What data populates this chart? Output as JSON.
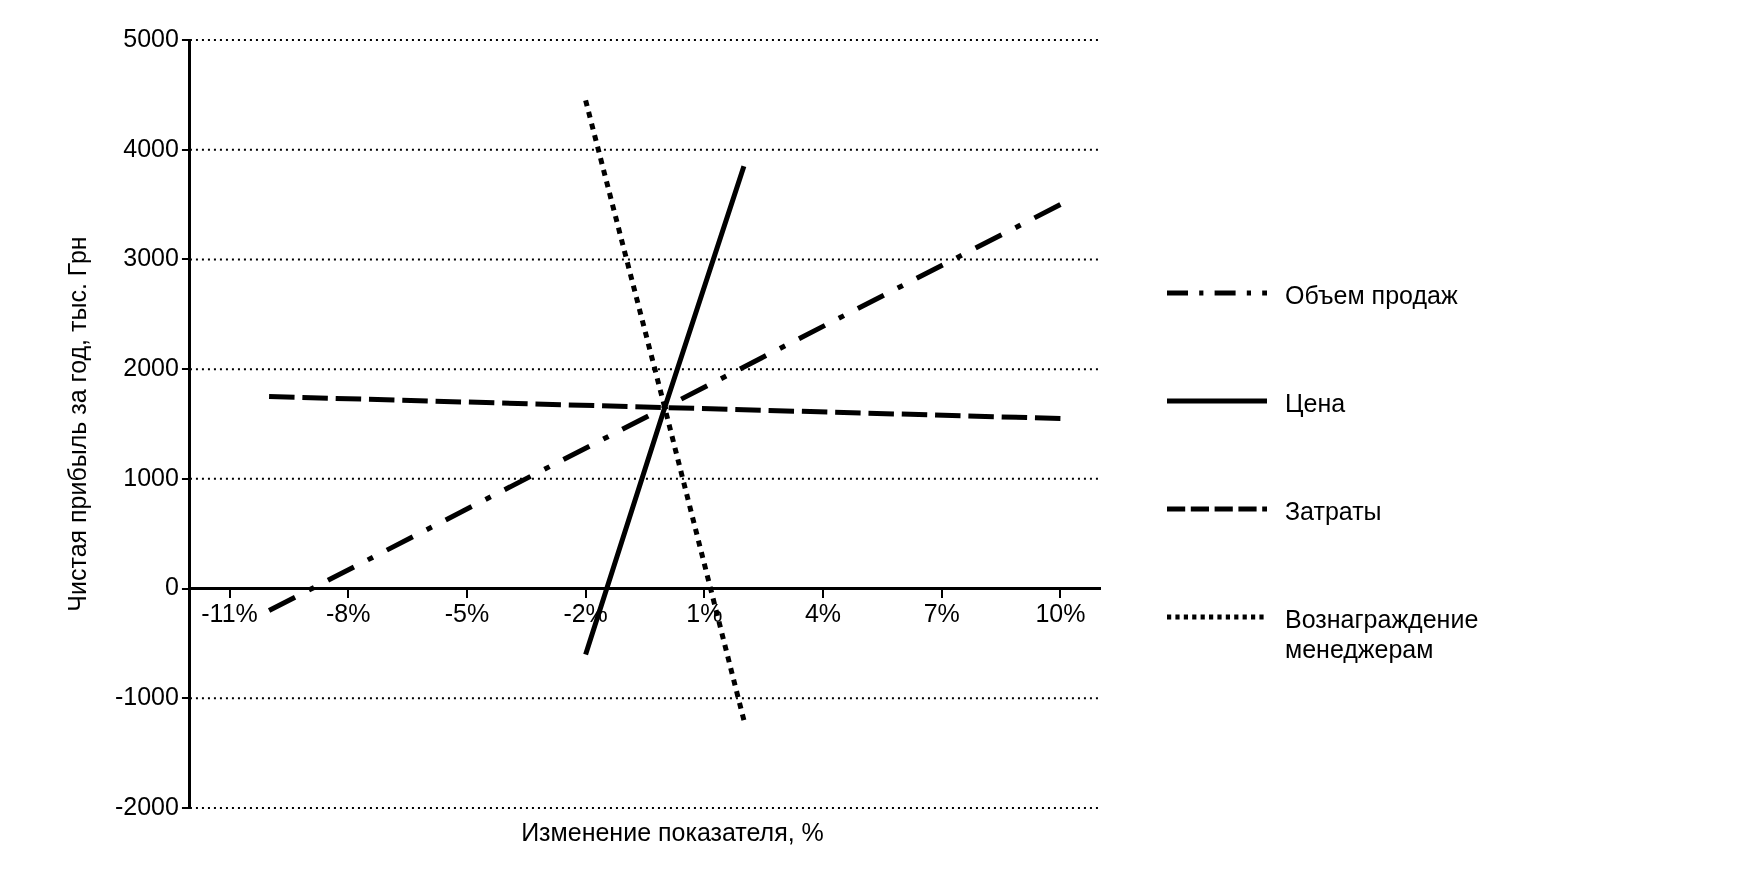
{
  "chart_data": {
    "type": "line",
    "xlabel": "Изменение показателя, %",
    "ylabel": "Чистая прибыль за год, тыс. Грн",
    "xlim": [
      -12,
      11
    ],
    "xticks": [
      {
        "value": -11,
        "label": "-11%"
      },
      {
        "value": -8,
        "label": "-8%"
      },
      {
        "value": -5,
        "label": "-5%"
      },
      {
        "value": -2,
        "label": "-2%"
      },
      {
        "value": 1,
        "label": "1%"
      },
      {
        "value": 4,
        "label": "4%"
      },
      {
        "value": 7,
        "label": "7%"
      },
      {
        "value": 10,
        "label": "10%"
      }
    ],
    "ylim": [
      -2000,
      5000
    ],
    "yticks": [
      -2000,
      -1000,
      0,
      1000,
      2000,
      3000,
      4000,
      5000
    ],
    "grid": "y",
    "legend": "right",
    "marker": "none",
    "series": [
      {
        "name": "Объем продаж",
        "color": "#000000",
        "line_style": "dashdot",
        "x": [
          -10,
          0,
          10
        ],
        "values": [
          -200,
          1650,
          3500
        ]
      },
      {
        "name": "Цена",
        "color": "#000000",
        "line_style": "solid",
        "x": [
          -2,
          0,
          2
        ],
        "values": [
          -600,
          1650,
          3850
        ]
      },
      {
        "name": "Затраты",
        "color": "#000000",
        "line_style": "dashed",
        "x": [
          -10,
          0,
          10
        ],
        "values": [
          1750,
          1650,
          1550
        ]
      },
      {
        "name": "Вознаграждение менеджерам",
        "color": "#000000",
        "line_style": "dotted",
        "x": [
          -2,
          0,
          2
        ],
        "values": [
          4450,
          1650,
          -1200
        ]
      }
    ]
  }
}
